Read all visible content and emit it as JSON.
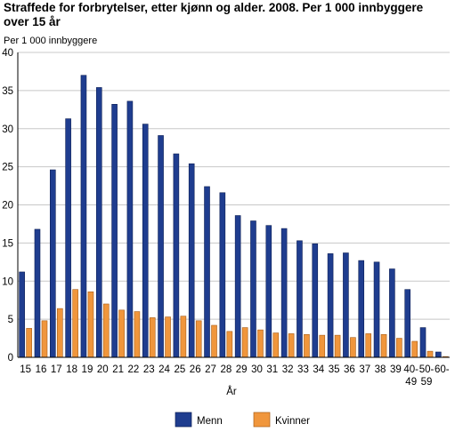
{
  "title": "Straffede for forbrytelser, etter kjønn og alder. 2008. Per 1 000 innbyggere over 15 år",
  "unit_label": "Per 1 000 innbyggere",
  "chart_data": {
    "type": "bar",
    "title": "Straffede for forbrytelser, etter kjønn og alder. 2008. Per 1 000 innbyggere over 15 år",
    "xlabel": "År",
    "ylabel": "Per 1 000 innbyggere",
    "ylim": [
      0,
      40
    ],
    "yticks": [
      0,
      5,
      10,
      15,
      20,
      25,
      30,
      35,
      40
    ],
    "grid": true,
    "legend_position": "bottom",
    "categories": [
      "15",
      "16",
      "17",
      "18",
      "19",
      "20",
      "21",
      "22",
      "23",
      "24",
      "25",
      "26",
      "27",
      "28",
      "29",
      "30",
      "31",
      "32",
      "33",
      "34",
      "35",
      "36",
      "37",
      "38",
      "39",
      "40-49",
      "50-59",
      "60-"
    ],
    "category_labels": [
      [
        "15"
      ],
      [
        "16"
      ],
      [
        "17"
      ],
      [
        "18"
      ],
      [
        "19"
      ],
      [
        "20"
      ],
      [
        "21"
      ],
      [
        "22"
      ],
      [
        "23"
      ],
      [
        "24"
      ],
      [
        "25"
      ],
      [
        "26"
      ],
      [
        "27"
      ],
      [
        "28"
      ],
      [
        "29"
      ],
      [
        "30"
      ],
      [
        "31"
      ],
      [
        "32"
      ],
      [
        "33"
      ],
      [
        "34"
      ],
      [
        "35"
      ],
      [
        "36"
      ],
      [
        "37"
      ],
      [
        "38"
      ],
      [
        "39"
      ],
      [
        "40-",
        "49"
      ],
      [
        "50-",
        "59"
      ],
      [
        "60-"
      ]
    ],
    "series": [
      {
        "name": "Menn",
        "color": "#1f3d8f",
        "values": [
          11.2,
          16.8,
          24.6,
          31.3,
          37.0,
          35.4,
          33.2,
          33.6,
          30.6,
          29.1,
          26.7,
          25.4,
          22.4,
          21.6,
          18.6,
          17.9,
          17.3,
          16.9,
          15.3,
          14.9,
          13.6,
          13.7,
          12.7,
          12.5,
          11.6,
          8.9,
          3.9,
          0.7
        ]
      },
      {
        "name": "Kvinner",
        "color": "#f0963c",
        "values": [
          3.8,
          4.8,
          6.4,
          8.9,
          8.6,
          7.0,
          6.2,
          6.0,
          5.2,
          5.3,
          5.4,
          4.8,
          4.2,
          3.4,
          3.9,
          3.6,
          3.2,
          3.1,
          3.0,
          2.9,
          2.9,
          2.6,
          3.1,
          3.0,
          2.5,
          2.1,
          0.8,
          0.1
        ]
      }
    ]
  }
}
